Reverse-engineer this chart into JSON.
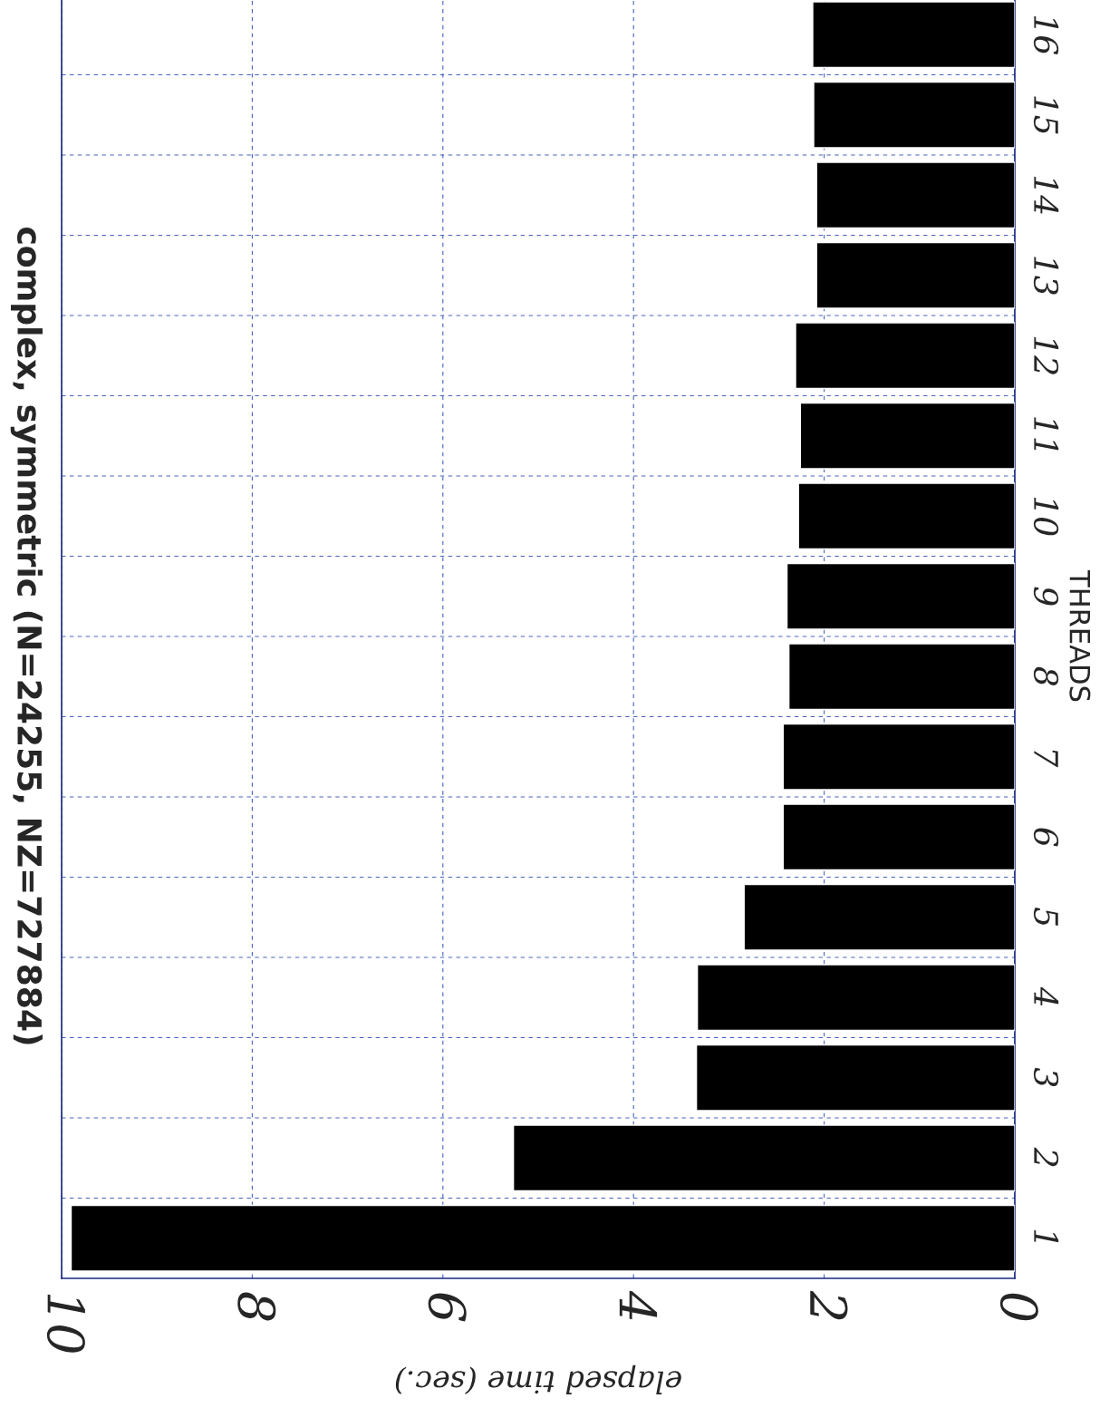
{
  "chart_data": {
    "type": "bar",
    "orientation": "horizontal",
    "title": "complex, symmetric (N=24255, NZ=727884)",
    "xlabel": "elapsed time (sec.)",
    "ylabel": "THREADS",
    "categories": [
      "16",
      "15",
      "14",
      "13",
      "12",
      "11",
      "10",
      "9",
      "8",
      "7",
      "6",
      "5",
      "4",
      "3",
      "2",
      "1"
    ],
    "values": [
      2.12,
      2.11,
      2.08,
      2.08,
      2.3,
      2.25,
      2.27,
      2.39,
      2.37,
      2.43,
      2.43,
      2.84,
      3.33,
      3.34,
      5.26,
      9.9
    ],
    "color": "#000000",
    "xlim": [
      10,
      0
    ],
    "xticks": [
      0,
      2,
      4,
      6,
      8,
      10
    ],
    "grid": true
  }
}
